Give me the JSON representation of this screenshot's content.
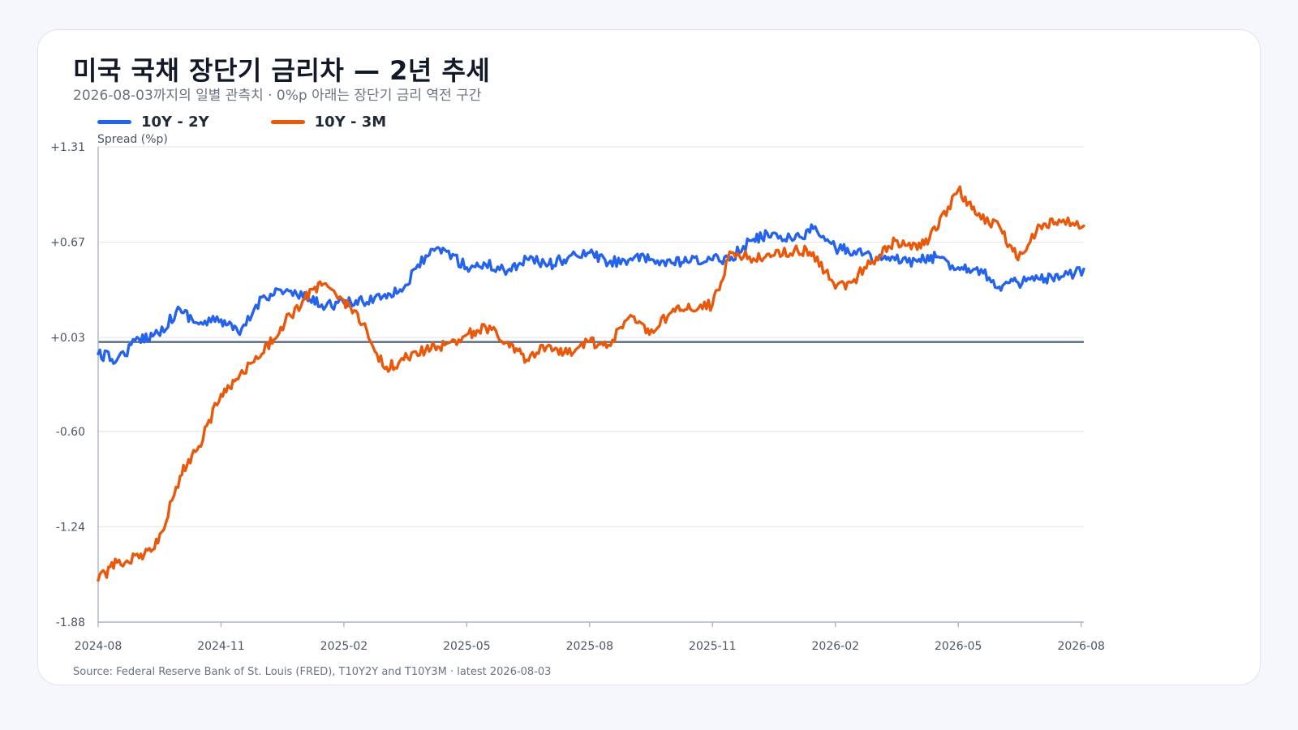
{
  "title": "미국 국채 장단기 금리차 — 2년 추세",
  "subtitle": "2026-08-03까지의 일별 관측치 · 0%p 아래는 장단기 금리 역전 구간",
  "source": "Source: Federal Reserve Bank of St. Louis (FRED), T10Y2Y and T10Y3M · latest 2026-08-03",
  "colors": {
    "background": "#f5f7fb",
    "card": "#ffffff",
    "grid": "#e3e8f0",
    "zero_line": "#5b6b82",
    "axis": "#aab4c3"
  },
  "chart_data": {
    "type": "line",
    "title": "미국 국채 장단기 금리차 — 2년 추세",
    "ylabel": "Spread (%p)",
    "ylim": [
      -1.88,
      1.31
    ],
    "yticks": [
      -1.88,
      -1.24,
      -0.6,
      0.03,
      0.67,
      1.31
    ],
    "ytick_labels": [
      "-1.88",
      "-1.24",
      "-0.60",
      "+0.03",
      "+0.67",
      "+1.31"
    ],
    "x_start": "2024-08",
    "x_end": "2026-08",
    "xticks": [
      "2024-08",
      "2024-11",
      "2025-02",
      "2025-05",
      "2025-08",
      "2025-11",
      "2026-02",
      "2026-05",
      "2026-08"
    ],
    "zero_line": 0,
    "grid": true,
    "legend_position": "top-left",
    "x": [
      "2024-08-01",
      "2024-08-15",
      "2024-09-01",
      "2024-09-15",
      "2024-10-01",
      "2024-10-15",
      "2024-11-01",
      "2024-11-15",
      "2024-12-01",
      "2024-12-15",
      "2025-01-01",
      "2025-01-15",
      "2025-02-01",
      "2025-02-15",
      "2025-03-01",
      "2025-03-15",
      "2025-04-01",
      "2025-04-15",
      "2025-05-01",
      "2025-05-15",
      "2025-06-01",
      "2025-06-15",
      "2025-07-01",
      "2025-07-15",
      "2025-08-01",
      "2025-08-15",
      "2025-09-01",
      "2025-09-15",
      "2025-10-01",
      "2025-10-15",
      "2025-11-01",
      "2025-11-15",
      "2025-12-01",
      "2025-12-15",
      "2026-01-01",
      "2026-01-15",
      "2026-02-01",
      "2026-02-15",
      "2026-03-01",
      "2026-03-15",
      "2026-04-01",
      "2026-04-15",
      "2026-05-01",
      "2026-05-15",
      "2026-06-01",
      "2026-06-15",
      "2026-07-01",
      "2026-07-15",
      "2026-08-03"
    ],
    "series": [
      {
        "name": "10Y - 2Y",
        "color": "#2563eb",
        "values": [
          -0.08,
          -0.12,
          0.02,
          0.06,
          0.22,
          0.12,
          0.15,
          0.05,
          0.3,
          0.35,
          0.3,
          0.25,
          0.26,
          0.27,
          0.32,
          0.36,
          0.58,
          0.62,
          0.5,
          0.52,
          0.48,
          0.56,
          0.52,
          0.56,
          0.6,
          0.53,
          0.56,
          0.55,
          0.53,
          0.54,
          0.55,
          0.57,
          0.69,
          0.73,
          0.69,
          0.76,
          0.63,
          0.61,
          0.56,
          0.55,
          0.54,
          0.57,
          0.5,
          0.5,
          0.37,
          0.4,
          0.42,
          0.42,
          0.49
        ]
      },
      {
        "name": "10Y - 3M",
        "color": "#e8590c",
        "values": [
          -1.6,
          -1.48,
          -1.45,
          -1.35,
          -0.9,
          -0.7,
          -0.35,
          -0.22,
          -0.08,
          0.1,
          0.28,
          0.38,
          0.28,
          0.12,
          -0.18,
          -0.12,
          -0.05,
          -0.02,
          0.05,
          0.1,
          0.0,
          -0.12,
          -0.02,
          -0.08,
          0.0,
          -0.02,
          0.18,
          0.05,
          0.2,
          0.22,
          0.25,
          0.6,
          0.56,
          0.58,
          0.62,
          0.6,
          0.36,
          0.42,
          0.57,
          0.68,
          0.62,
          0.75,
          1.02,
          0.85,
          0.78,
          0.55,
          0.78,
          0.82,
          0.78
        ]
      }
    ]
  }
}
